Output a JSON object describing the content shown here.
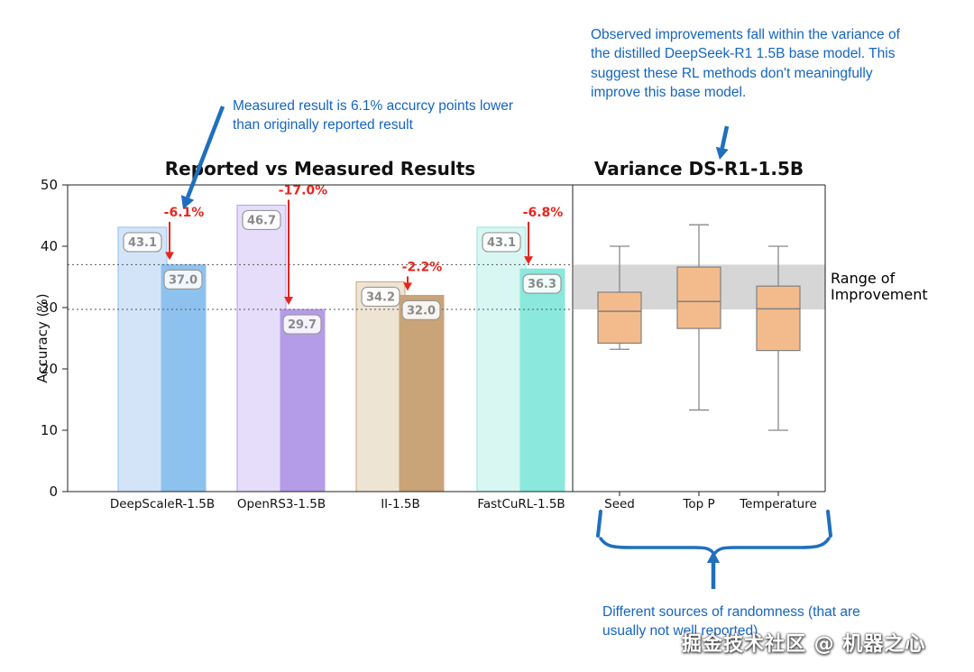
{
  "colors": {
    "blue": "#1f6fbe",
    "red": "#e8251d",
    "band": "#d6d6d6",
    "spine": "#222222"
  },
  "annotations": {
    "measured_note": "Measured result is 6.1% accurcy points lower than originally reported result",
    "variance_note": "Observed improvements fall within the variance of the distilled DeepSeek-R1 1.5B base model. This suggest these RL methods don't meaningfully improve this base model.",
    "randomness_note": "Different sources of randomness (that are usually not well reported)",
    "range_of_improvement": "Range of Improvement"
  },
  "page": {
    "watermark": "掘金技术社区 @ 机器之心"
  },
  "chart_data": [
    {
      "type": "bar",
      "title": "Reported vs Measured Results",
      "ylabel": "Accuracy (%)",
      "ylim": [
        0,
        50
      ],
      "yticks": [
        0,
        10,
        20,
        30,
        40,
        50
      ],
      "categories": [
        "DeepScaleR-1.5B",
        "OpenRS3-1.5B",
        "II-1.5B",
        "FastCuRL-1.5B"
      ],
      "series": [
        {
          "name": "Reported",
          "values": [
            43.1,
            46.7,
            34.2,
            43.1
          ],
          "colors": [
            "#cfe1f7",
            "#e2d9f9",
            "#ece1cf",
            "#d4f6f1"
          ]
        },
        {
          "name": "Measured",
          "values": [
            37.0,
            29.7,
            32.0,
            36.3
          ],
          "colors": [
            "#8ec2ee",
            "#b59ce8",
            "#c9a478",
            "#8ae8dc"
          ]
        }
      ],
      "deltas": [
        "-6.1%",
        "-17.0%",
        "-2.2%",
        "-6.8%"
      ],
      "reference_lines": [
        37.0,
        29.7
      ],
      "grid": false,
      "legend": "none"
    },
    {
      "type": "box",
      "title": "Variance DS-R1-1.5B",
      "categories": [
        "Seed",
        "Top P",
        "Temperature"
      ],
      "boxes": [
        {
          "whisker_low": 23.2,
          "q1": 24.2,
          "median": 29.4,
          "q3": 32.5,
          "whisker_high": 40.0
        },
        {
          "whisker_low": 13.3,
          "q1": 26.6,
          "median": 31.0,
          "q3": 36.6,
          "whisker_high": 43.5
        },
        {
          "whisker_low": 10.0,
          "q1": 23.0,
          "median": 29.8,
          "q3": 33.5,
          "whisker_high": 40.0
        }
      ],
      "band": [
        29.7,
        37.0
      ],
      "box_color": "#f3bb8b",
      "box_edge": "#808080"
    }
  ]
}
